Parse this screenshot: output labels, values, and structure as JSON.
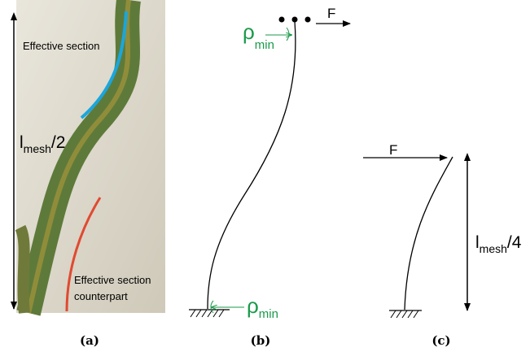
{
  "panel_a": {
    "caption": "(a)",
    "top_label": "Effective section",
    "length_symbol": "l",
    "length_subscript": "mesh",
    "length_ratio": "/2",
    "bottom_label": [
      "Effective section",
      "counterpart"
    ]
  },
  "panel_b": {
    "caption": "(b)",
    "force": "F",
    "rho_symbol": "ρ",
    "rho_subscript": "min"
  },
  "panel_c": {
    "caption": "(c)",
    "force": "F",
    "length_symbol": "l",
    "length_subscript": "mesh",
    "length_ratio": "/4"
  }
}
